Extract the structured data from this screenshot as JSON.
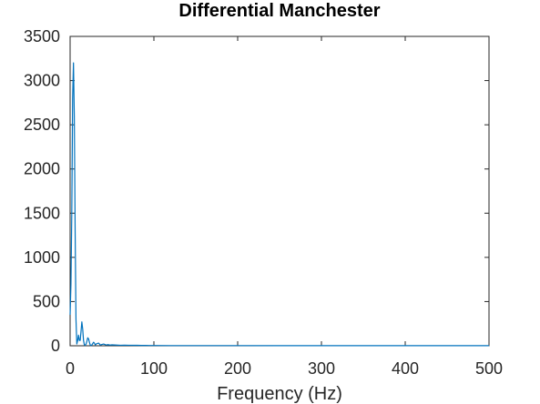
{
  "chart_data": {
    "type": "line",
    "title": "Differential Manchester",
    "xlabel": "Frequency (Hz)",
    "ylabel": "",
    "xlim": [
      0,
      500
    ],
    "ylim": [
      0,
      3500
    ],
    "xticks": [
      0,
      100,
      200,
      300,
      400,
      500
    ],
    "yticks": [
      0,
      500,
      1000,
      1500,
      2000,
      2500,
      3000,
      3500
    ],
    "xtick_labels": [
      "0",
      "100",
      "200",
      "300",
      "400",
      "500"
    ],
    "ytick_labels": [
      "0",
      "500",
      "1000",
      "1500",
      "2000",
      "2500",
      "3000",
      "3500"
    ],
    "grid": false,
    "series": [
      {
        "color": "#0072BD",
        "x": [
          0,
          1,
          2,
          3,
          4,
          5,
          6,
          7,
          8,
          9,
          10,
          11,
          12,
          13,
          14,
          15,
          16,
          17,
          18,
          19,
          20,
          21,
          22,
          23,
          24,
          25,
          26,
          27,
          28,
          29,
          30,
          32,
          34,
          35,
          36,
          38,
          40,
          42,
          44,
          45,
          46,
          48,
          50,
          55,
          60,
          65,
          70,
          75,
          80,
          85,
          90,
          95,
          100,
          120,
          150,
          200,
          250,
          300,
          350,
          400,
          450,
          500
        ],
        "y": [
          350,
          700,
          1500,
          2800,
          3200,
          2600,
          1300,
          300,
          20,
          60,
          120,
          60,
          60,
          160,
          270,
          190,
          60,
          10,
          5,
          20,
          50,
          90,
          80,
          40,
          10,
          2,
          10,
          25,
          40,
          30,
          10,
          25,
          30,
          20,
          8,
          15,
          20,
          12,
          8,
          14,
          10,
          8,
          10,
          8,
          6,
          7,
          6,
          5,
          5,
          4,
          4,
          3,
          3,
          2,
          2,
          2,
          1,
          1,
          1,
          1,
          1,
          1
        ]
      }
    ]
  }
}
